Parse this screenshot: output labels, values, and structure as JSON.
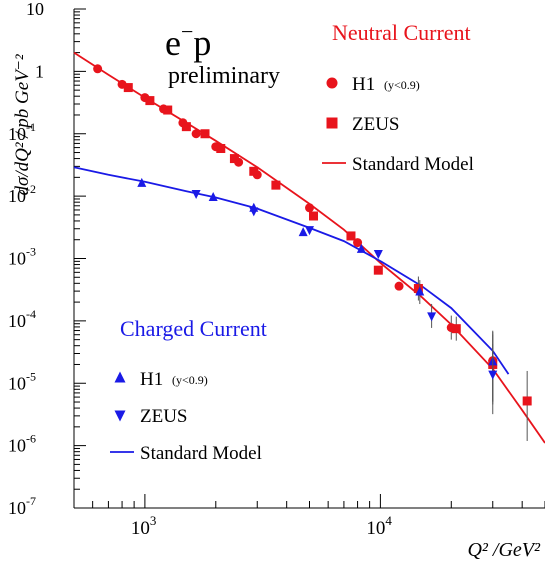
{
  "chart_data": {
    "type": "scatter",
    "xscale": "log",
    "yscale": "log",
    "xlim": [
      500,
      50000
    ],
    "ylim": [
      1e-07,
      10
    ],
    "ylabel": "dσ/dQ² / pb GeV⁻²",
    "xlabel": "Q² /GeV²",
    "x_tick_labels": [
      {
        "base": "10",
        "exp": "3",
        "value": 1000
      },
      {
        "base": "10",
        "exp": "4",
        "value": 10000
      }
    ],
    "y_tick_labels": [
      {
        "base": "10",
        "exp": "",
        "value": 10
      },
      {
        "base": "1",
        "exp": "",
        "value": 1
      },
      {
        "base": "10",
        "exp": "-1",
        "value": 0.1
      },
      {
        "base": "10",
        "exp": "-2",
        "value": 0.01
      },
      {
        "base": "10",
        "exp": "-3",
        "value": 0.001
      },
      {
        "base": "10",
        "exp": "-4",
        "value": 0.0001
      },
      {
        "base": "10",
        "exp": "-5",
        "value": 1e-05
      },
      {
        "base": "10",
        "exp": "-6",
        "value": 1e-06
      },
      {
        "base": "10",
        "exp": "-7",
        "value": 1e-07
      }
    ],
    "annotations": {
      "process_main": "e",
      "process_super": "−",
      "process_tail": "p",
      "preliminary": "preliminary",
      "nc_title": "Neutral Current",
      "cc_title": "Charged Current"
    },
    "legend_nc": [
      {
        "label": "H1",
        "note": "(y<0.9)",
        "marker": "circle"
      },
      {
        "label": "ZEUS",
        "note": "",
        "marker": "square"
      },
      {
        "label": "Standard Model",
        "note": "",
        "marker": "line"
      }
    ],
    "legend_cc": [
      {
        "label": "H1",
        "note": "(y<0.9)",
        "marker": "triangle-up"
      },
      {
        "label": "ZEUS",
        "note": "",
        "marker": "triangle-down"
      },
      {
        "label": "Standard Model",
        "note": "",
        "marker": "line"
      }
    ],
    "colors": {
      "nc": "#e8141c",
      "cc": "#1a1ae6",
      "axis": "#000000"
    },
    "series": [
      {
        "group": "Neutral Current",
        "experiment": "H1",
        "marker": "circle",
        "color": "#e8141c",
        "x": [
          630,
          800,
          1000,
          1200,
          1450,
          1650,
          2000,
          2500,
          3000,
          5000,
          8000,
          12000,
          20000,
          30000
        ],
        "y": [
          1.1,
          0.62,
          0.38,
          0.25,
          0.15,
          0.1,
          0.062,
          0.035,
          0.022,
          0.0065,
          0.0018,
          0.00036,
          7.8e-05,
          2.3e-05
        ]
      },
      {
        "group": "Neutral Current",
        "experiment": "ZEUS",
        "marker": "square",
        "color": "#e8141c",
        "x": [
          850,
          1050,
          1250,
          1500,
          1800,
          2100,
          2400,
          2900,
          3600,
          5200,
          7500,
          9800,
          14500,
          21000,
          30000,
          42000
        ],
        "y": [
          0.55,
          0.34,
          0.24,
          0.13,
          0.1,
          0.058,
          0.04,
          0.025,
          0.015,
          0.0048,
          0.0023,
          0.00065,
          0.00033,
          7.5e-05,
          2e-05,
          5.2e-06
        ]
      },
      {
        "group": "Charged Current",
        "experiment": "H1",
        "marker": "triangle-up",
        "color": "#1a1ae6",
        "x": [
          970,
          1950,
          2900,
          4700,
          8300,
          14700,
          30000
        ],
        "y": [
          0.016,
          0.0095,
          0.0064,
          0.0026,
          0.0014,
          0.00029,
          2.2e-05
        ]
      },
      {
        "group": "Charged Current",
        "experiment": "ZEUS",
        "marker": "triangle-down",
        "color": "#1a1ae6",
        "x": [
          1650,
          2900,
          5000,
          9800,
          16500,
          30000
        ],
        "y": [
          0.011,
          0.0058,
          0.0029,
          0.0012,
          0.00012,
          1.4e-05
        ]
      }
    ],
    "model_curves": [
      {
        "group": "Neutral Current",
        "label": "Standard Model",
        "color": "#e8141c",
        "x": [
          500,
          700,
          1000,
          1500,
          2000,
          3000,
          5000,
          7000,
          10000,
          15000,
          20000,
          30000,
          40000,
          50000
        ],
        "y": [
          2.0,
          0.88,
          0.38,
          0.15,
          0.077,
          0.029,
          0.0075,
          0.0029,
          0.00085,
          0.00024,
          8.7e-05,
          1.7e-05,
          3.7e-06,
          1.1e-06
        ]
      },
      {
        "group": "Charged Current",
        "label": "Standard Model",
        "color": "#1a1ae6",
        "x": [
          500,
          700,
          1000,
          1500,
          2000,
          3000,
          5000,
          7000,
          10000,
          15000,
          20000,
          30000,
          35000
        ],
        "y": [
          0.029,
          0.022,
          0.017,
          0.012,
          0.0095,
          0.0063,
          0.0031,
          0.0019,
          0.00091,
          0.00036,
          0.00016,
          3.3e-05,
          1.4e-05
        ]
      }
    ]
  }
}
